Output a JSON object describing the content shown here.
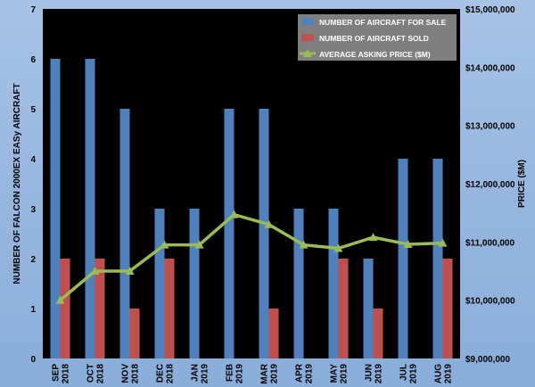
{
  "chart_data": {
    "type": "bar",
    "categories": [
      [
        "SEP",
        "2018"
      ],
      [
        "OCT",
        "2018"
      ],
      [
        "NOV",
        "2018"
      ],
      [
        "DEC",
        "2018"
      ],
      [
        "JAN",
        "2019"
      ],
      [
        "FEB",
        "2019"
      ],
      [
        "MAR",
        "2019"
      ],
      [
        "APR",
        "2019"
      ],
      [
        "MAY",
        "2019"
      ],
      [
        "JUN",
        "2019"
      ],
      [
        "JUL",
        "2019"
      ],
      [
        "AUG",
        "2019"
      ]
    ],
    "series": [
      {
        "name": "NUMBER OF AIRCRAFT FOR SALE",
        "type": "bar",
        "axis": "left",
        "color": "#4f81bd",
        "values": [
          6,
          6,
          5,
          3,
          3,
          5,
          5,
          3,
          3,
          2,
          4,
          4
        ]
      },
      {
        "name": "NUMBER OF AIRCRAFT SOLD",
        "type": "bar",
        "axis": "left",
        "color": "#c0504d",
        "values": [
          2,
          2,
          1,
          2,
          0,
          0,
          1,
          0,
          2,
          1,
          0,
          2
        ]
      },
      {
        "name": "AVERAGE ASKING PRICE ($M)",
        "type": "line",
        "axis": "right",
        "color": "#9bbb59",
        "values": [
          10000000,
          10500000,
          10500000,
          10950000,
          10950000,
          11470000,
          11300000,
          10950000,
          10890000,
          11080000,
          10960000,
          10980000
        ]
      }
    ],
    "ylabel": "NUMBER OF FALCON 2000EX EASy AIRCRAFT",
    "y2label": "PRICE ($M)",
    "ylim": [
      0,
      7
    ],
    "yticks": [
      0,
      1,
      2,
      3,
      4,
      5,
      6,
      7
    ],
    "y2lim": [
      9000000,
      15000000
    ],
    "y2ticks": [
      "$9,000,000",
      "$10,000,000",
      "$11,000,000",
      "$12,000,000",
      "$13,000,000",
      "$14,000,000",
      "$15,000,000"
    ],
    "legend_position": "top-right",
    "grid": false,
    "plot_background": "#000000"
  }
}
